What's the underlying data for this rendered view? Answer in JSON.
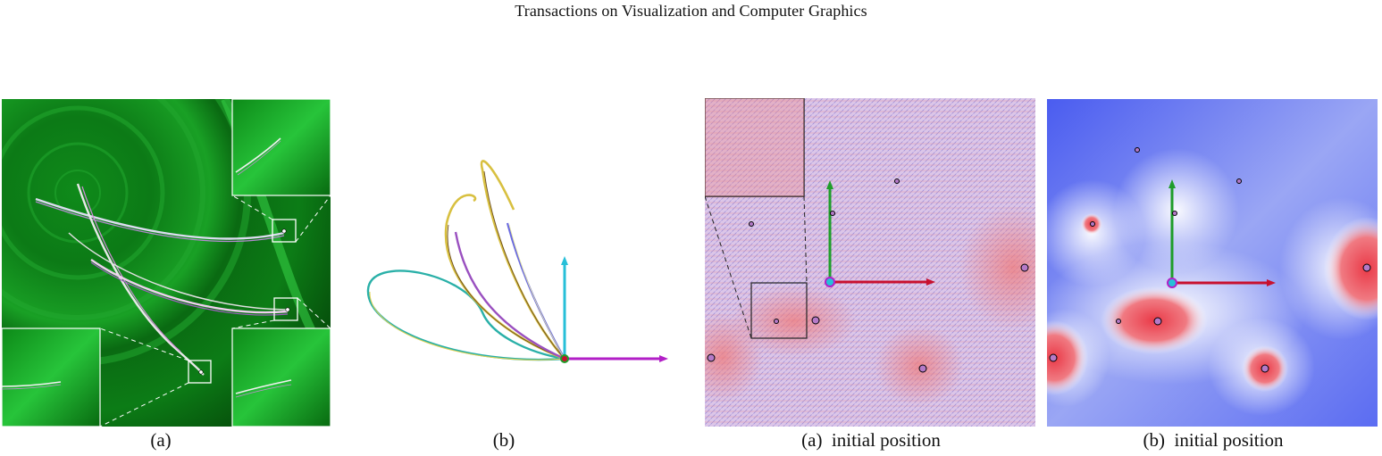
{
  "header": {
    "title": "Transactions on Visualization and Computer Graphics"
  },
  "captions": {
    "fig1": "(a)",
    "fig2": "(b)",
    "fig3": "(a)  initial position",
    "fig4": "(b)  initial position"
  },
  "colors": {
    "green_field": "#0a7a14",
    "axis_x": "#c8102e",
    "axis_y": "#1f9d2a",
    "axis_z": "#27bfd8",
    "axis_magenta": "#b21fc7",
    "blue_field": "#4a5cf0",
    "red_blob": "#ee5560"
  }
}
